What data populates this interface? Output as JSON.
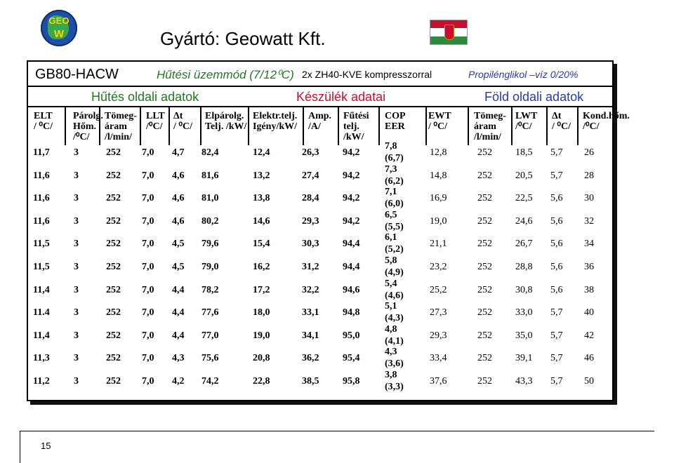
{
  "logo": {
    "line1": "GEO",
    "line2": "W"
  },
  "manufacturer": "Gyártó: Geowatt Kft.",
  "header": {
    "model": "GB80-HACW",
    "mode": "Hűtési üzemmód (7/12⁰C)",
    "compressor": "2x ZH40-KVE kompresszorral",
    "fluid": "Propilénglikol –víz 0/20%"
  },
  "sections": {
    "cooling": "Hűtés oldali adatok",
    "device": "Készülék adatai",
    "earth": "Föld oldali adatok"
  },
  "columns": {
    "elt": [
      "ELT",
      "/ ⁰C/"
    ],
    "evap_temp": [
      "Párolg.",
      "Hőm.",
      "/⁰C/"
    ],
    "flow1": [
      "Tömeg-",
      "áram",
      "/l/min/"
    ],
    "llt": [
      "LLT",
      "/⁰C/"
    ],
    "dt1": [
      "Δt",
      "/ ⁰C/"
    ],
    "evap_power": [
      "Elpárolg.",
      "Telj. /kW/"
    ],
    "elec_power": [
      "Elektr.telj.",
      "Igény/kW/"
    ],
    "amp": [
      "Amp.",
      "/A/"
    ],
    "heat_power": [
      "Fűtési",
      "telj.",
      "/kW/"
    ],
    "cop": [
      "COP",
      "EER"
    ],
    "ewt": [
      "EWT",
      "/ ⁰C/"
    ],
    "flow2": [
      "Tömeg-",
      "áram",
      "/l/min/"
    ],
    "lwt": [
      "LWT",
      "/⁰C/"
    ],
    "dt2": [
      "Δt",
      "/ ⁰C/"
    ],
    "cond_temp": [
      "Kond.hőm.",
      "/⁰C/"
    ]
  },
  "rows": [
    [
      "11,7",
      "3",
      "252",
      "7,0",
      "4,7",
      "82,4",
      "12,4",
      "26,3",
      "94,2",
      "7,8",
      "(6,7)",
      "12,8",
      "252",
      "18,5",
      "5,7",
      "26"
    ],
    [
      "11,6",
      "3",
      "252",
      "7,0",
      "4,6",
      "81,6",
      "13,2",
      "27,4",
      "94,2",
      "7,3",
      "(6,2)",
      "14,8",
      "252",
      "20,5",
      "5,7",
      "28"
    ],
    [
      "11,6",
      "3",
      "252",
      "7,0",
      "4,6",
      "81,0",
      "13,8",
      "28,4",
      "94,2",
      "7,1",
      "(6,0)",
      "16,9",
      "252",
      "22,5",
      "5,6",
      "30"
    ],
    [
      "11,6",
      "3",
      "252",
      "7,0",
      "4,6",
      "80,2",
      "14,6",
      "29,3",
      "94,2",
      "6,5",
      "(5,5)",
      "19,0",
      "252",
      "24,6",
      "5,6",
      "32"
    ],
    [
      "11,5",
      "3",
      "252",
      "7,0",
      "4,5",
      "79,6",
      "15,4",
      "30,3",
      "94,4",
      "6,1",
      "(5,2)",
      "21,1",
      "252",
      "26,7",
      "5,6",
      "34"
    ],
    [
      "11,5",
      "3",
      "252",
      "7,0",
      "4,5",
      "79,0",
      "16,2",
      "31,2",
      "94,4",
      "5,8",
      "(4,9)",
      "23,2",
      "252",
      "28,8",
      "5,6",
      "36"
    ],
    [
      "11,4",
      "3",
      "252",
      "7,0",
      "4,4",
      "78,2",
      "17,2",
      "32,2",
      "94,6",
      "5,4",
      "(4,6)",
      "25,2",
      "252",
      "30,8",
      "5,6",
      "38"
    ],
    [
      "11.4",
      "3",
      "252",
      "7,0",
      "4,4",
      "77,6",
      "18,0",
      "33,1",
      "94,8",
      "5,1",
      "(4,3)",
      "27,3",
      "252",
      "33,0",
      "5,7",
      "40"
    ],
    [
      "11,4",
      "3",
      "252",
      "7,0",
      "4,4",
      "77,0",
      "19,0",
      "34,1",
      "95,0",
      "4,8",
      "(4,1)",
      "29,3",
      "252",
      "35,0",
      "5,7",
      "42"
    ],
    [
      "11,3",
      "3",
      "252",
      "7,0",
      "4,3",
      "75,6",
      "20,8",
      "36,2",
      "95,4",
      "4,3",
      "(3,6)",
      "33,4",
      "252",
      "39,1",
      "5,7",
      "46"
    ],
    [
      "11,2",
      "3",
      "252",
      "7,0",
      "4,2",
      "74,2",
      "22,8",
      "38,5",
      "95,8",
      "3,8",
      "(3,3)",
      "37,6",
      "252",
      "43,3",
      "5,7",
      "50"
    ]
  ],
  "page_number": "15",
  "colors": {
    "green": "#1e7a1e",
    "red": "#c8102e",
    "blue": "#2c3aa8"
  }
}
